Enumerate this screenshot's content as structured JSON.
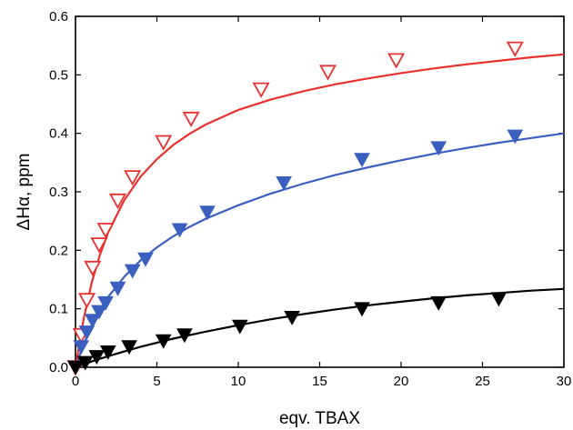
{
  "chart_data": {
    "type": "scatter",
    "xlabel": "eqv. TBAX",
    "ylabel": "ΔHα, ppm",
    "xlim": [
      0,
      30
    ],
    "ylim": [
      0,
      0.6
    ],
    "x_ticks": [
      "0",
      "5",
      "10",
      "15",
      "20",
      "25",
      "30"
    ],
    "y_ticks": [
      "0.0",
      "0.1",
      "0.2",
      "0.3",
      "0.4",
      "0.5",
      "0.6"
    ],
    "grid": false,
    "legend": "none",
    "series": [
      {
        "color": "#e8312f",
        "marker": "open-down-triangle",
        "points": [
          [
            0,
            0
          ],
          [
            0.35,
            0.055
          ],
          [
            0.7,
            0.115
          ],
          [
            1.05,
            0.17
          ],
          [
            1.45,
            0.21
          ],
          [
            1.85,
            0.235
          ],
          [
            2.6,
            0.285
          ],
          [
            3.5,
            0.325
          ],
          [
            5.4,
            0.385
          ],
          [
            7.1,
            0.425
          ],
          [
            11.4,
            0.475
          ],
          [
            15.5,
            0.505
          ],
          [
            19.7,
            0.525
          ],
          [
            27.0,
            0.545
          ]
        ],
        "curve": [
          [
            0,
            0
          ],
          [
            0.5,
            0.083
          ],
          [
            1,
            0.145
          ],
          [
            1.5,
            0.192
          ],
          [
            2,
            0.23
          ],
          [
            3,
            0.286
          ],
          [
            4,
            0.326
          ],
          [
            5,
            0.356
          ],
          [
            6,
            0.38
          ],
          [
            7,
            0.399
          ],
          [
            8,
            0.415
          ],
          [
            10,
            0.44
          ],
          [
            12,
            0.458
          ],
          [
            14,
            0.472
          ],
          [
            16,
            0.484
          ],
          [
            18,
            0.494
          ],
          [
            20,
            0.503
          ],
          [
            22,
            0.511
          ],
          [
            24,
            0.518
          ],
          [
            26,
            0.524
          ],
          [
            28,
            0.53
          ],
          [
            30,
            0.535
          ]
        ]
      },
      {
        "color": "#3a5fbf",
        "marker": "filled-down-triangle",
        "points": [
          [
            0,
            0
          ],
          [
            0.35,
            0.035
          ],
          [
            0.7,
            0.06
          ],
          [
            1.05,
            0.08
          ],
          [
            1.45,
            0.095
          ],
          [
            1.85,
            0.11
          ],
          [
            2.6,
            0.135
          ],
          [
            3.5,
            0.165
          ],
          [
            4.3,
            0.185
          ],
          [
            6.4,
            0.235
          ],
          [
            8.1,
            0.265
          ],
          [
            12.8,
            0.315
          ],
          [
            17.6,
            0.355
          ],
          [
            22.3,
            0.375
          ],
          [
            27.0,
            0.395
          ]
        ],
        "curve": [
          [
            0,
            0
          ],
          [
            0.5,
            0.04
          ],
          [
            1,
            0.072
          ],
          [
            1.5,
            0.098
          ],
          [
            2,
            0.12
          ],
          [
            3,
            0.155
          ],
          [
            4,
            0.183
          ],
          [
            5,
            0.205
          ],
          [
            6,
            0.224
          ],
          [
            7,
            0.24
          ],
          [
            8,
            0.254
          ],
          [
            10,
            0.277
          ],
          [
            12,
            0.297
          ],
          [
            14,
            0.314
          ],
          [
            16,
            0.329
          ],
          [
            18,
            0.342
          ],
          [
            20,
            0.354
          ],
          [
            22,
            0.365
          ],
          [
            24,
            0.375
          ],
          [
            26,
            0.384
          ],
          [
            28,
            0.392
          ],
          [
            30,
            0.4
          ]
        ]
      },
      {
        "color": "#000000",
        "marker": "filled-down-triangle",
        "points": [
          [
            0,
            0
          ],
          [
            0.6,
            0.008
          ],
          [
            1.3,
            0.018
          ],
          [
            2.0,
            0.026
          ],
          [
            3.3,
            0.035
          ],
          [
            5.4,
            0.045
          ],
          [
            6.7,
            0.055
          ],
          [
            10.1,
            0.07
          ],
          [
            13.3,
            0.085
          ],
          [
            17.6,
            0.1
          ],
          [
            22.3,
            0.11
          ],
          [
            26.0,
            0.117
          ]
        ],
        "curve": [
          [
            0,
            0
          ],
          [
            1,
            0.01
          ],
          [
            2,
            0.019
          ],
          [
            3,
            0.027
          ],
          [
            4,
            0.035
          ],
          [
            5,
            0.042
          ],
          [
            6,
            0.049
          ],
          [
            8,
            0.061
          ],
          [
            10,
            0.072
          ],
          [
            12,
            0.082
          ],
          [
            14,
            0.091
          ],
          [
            16,
            0.099
          ],
          [
            18,
            0.106
          ],
          [
            20,
            0.112
          ],
          [
            22,
            0.118
          ],
          [
            24,
            0.123
          ],
          [
            26,
            0.127
          ],
          [
            28,
            0.131
          ],
          [
            30,
            0.134
          ]
        ]
      }
    ]
  }
}
